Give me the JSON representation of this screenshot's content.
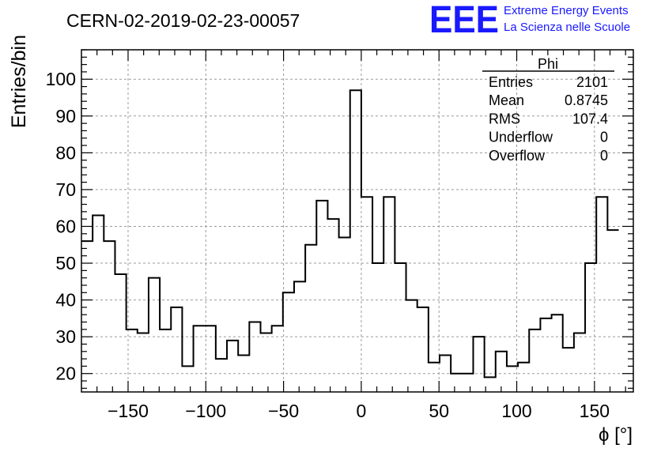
{
  "chart_data": {
    "type": "bar",
    "title": "CERN-02-2019-02-23-00057",
    "xlabel": "ϕ [°]",
    "ylabel": "Entries/bin",
    "xlim": [
      -180,
      175
    ],
    "ylim": [
      15,
      108
    ],
    "bin_width": 7.2,
    "x_ticks": [
      -150,
      -100,
      -50,
      0,
      50,
      100,
      150
    ],
    "x_tick_labels": [
      "−150",
      "−100",
      "−50",
      "0",
      "50",
      "100",
      "150"
    ],
    "y_ticks": [
      20,
      30,
      40,
      50,
      60,
      70,
      80,
      90,
      100
    ],
    "y_tick_labels": [
      "20",
      "30",
      "40",
      "50",
      "60",
      "70",
      "80",
      "90",
      "100"
    ],
    "grid": true,
    "values": [
      56,
      63,
      56,
      47,
      32,
      31,
      46,
      32,
      38,
      22,
      33,
      33,
      24,
      29,
      25,
      34,
      31,
      33,
      42,
      45,
      55,
      67,
      62,
      57,
      97,
      68,
      50,
      68,
      50,
      40,
      38,
      23,
      25,
      20,
      20,
      30,
      19,
      26,
      22,
      23,
      32,
      35,
      36,
      27,
      31,
      50,
      68,
      59
    ],
    "stats": {
      "name": "Phi",
      "rows": [
        {
          "label": "Entries",
          "value": "2101"
        },
        {
          "label": "Mean",
          "value": "0.8745"
        },
        {
          "label": "RMS",
          "value": "107.4"
        },
        {
          "label": "Underflow",
          "value": "0"
        },
        {
          "label": "Overflow",
          "value": "0"
        }
      ]
    },
    "logo": {
      "mark": "EEE",
      "line1": "Extreme Energy Events",
      "line2": "La Scienza nelle Scuole",
      "color": "#1a1aff"
    }
  }
}
